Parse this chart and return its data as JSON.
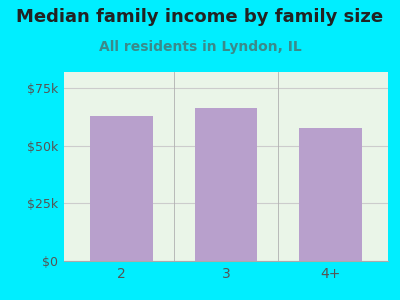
{
  "categories": [
    "2",
    "3",
    "4+"
  ],
  "values": [
    63000,
    66500,
    57500
  ],
  "bar_color": "#b8a0cc",
  "background_color": "#00eeff",
  "plot_bg_color": "#eaf5e8",
  "title": "Median family income by family size",
  "subtitle": "All residents in Lyndon, IL",
  "title_color": "#222222",
  "subtitle_color": "#3a8a8a",
  "ylabel_ticks": [
    0,
    25000,
    50000,
    75000
  ],
  "ylabel_labels": [
    "$0",
    "$25k",
    "$50k",
    "$75k"
  ],
  "ylim": [
    0,
    82000
  ],
  "title_fontsize": 13,
  "subtitle_fontsize": 10,
  "tick_label_color": "#555555",
  "tick_color_cyan": "#00eeff",
  "grid_color": "#cccccc",
  "bar_width": 0.6,
  "xlim_left": -0.55,
  "xlim_right": 2.55
}
